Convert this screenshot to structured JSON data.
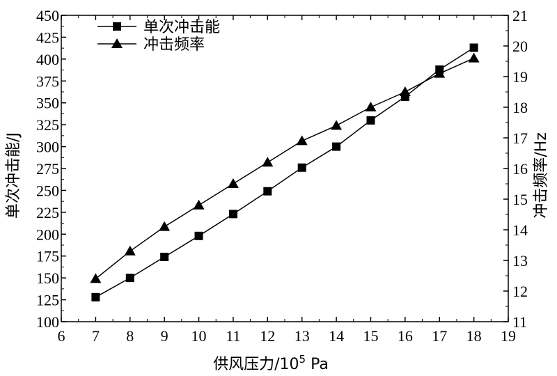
{
  "chart_data": {
    "type": "line",
    "x": [
      7,
      8,
      9,
      10,
      11,
      12,
      13,
      14,
      15,
      16,
      17,
      18
    ],
    "xlim": [
      6,
      19
    ],
    "x_ticks": [
      6,
      7,
      8,
      9,
      10,
      11,
      12,
      13,
      14,
      15,
      16,
      17,
      18,
      19
    ],
    "xlabel": "供风压力/10",
    "xlabel_sup": "5",
    "xlabel_unit": "Pa",
    "ylabel_left": "单次冲击能/J",
    "ylim_left": [
      100,
      450
    ],
    "y_ticks_left": [
      100,
      125,
      150,
      175,
      200,
      225,
      250,
      275,
      300,
      325,
      350,
      375,
      400,
      425,
      450
    ],
    "ylabel_right": "冲击频率/Hz",
    "ylim_right": [
      11,
      21
    ],
    "y_ticks_right": [
      11,
      12,
      13,
      14,
      15,
      16,
      17,
      18,
      19,
      20,
      21
    ],
    "grid": false,
    "legend_position": "top-left",
    "series": [
      {
        "name": "单次冲击能",
        "axis": "left",
        "marker": "square",
        "values": [
          128,
          150,
          174,
          198,
          223,
          249,
          276,
          300,
          330,
          357,
          388,
          413
        ]
      },
      {
        "name": "冲击频率",
        "axis": "right",
        "marker": "triangle",
        "values": [
          12.4,
          13.3,
          14.1,
          14.8,
          15.5,
          16.2,
          16.9,
          17.4,
          18.0,
          18.5,
          19.1,
          19.6
        ]
      }
    ]
  }
}
